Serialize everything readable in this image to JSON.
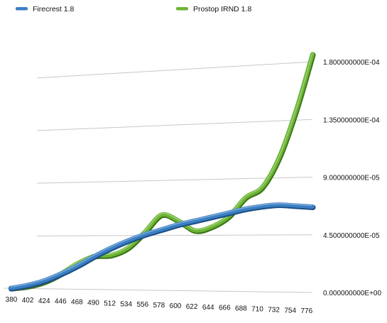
{
  "chart_data": {
    "type": "line",
    "title": "",
    "xlabel": "",
    "ylabel": "",
    "legend_placement": "top",
    "grid": true,
    "x": [
      "380",
      "402",
      "424",
      "446",
      "468",
      "490",
      "512",
      "534",
      "556",
      "578",
      "600",
      "622",
      "644",
      "666",
      "688",
      "710",
      "732",
      "754",
      "776"
    ],
    "yticks": [
      "0.000000000E+00",
      "4.500000000E-05",
      "9.000000000E-05",
      "1.350000000E-04",
      "1.800000000E-04"
    ],
    "ylim": [
      0,
      0.00018
    ],
    "series": [
      {
        "name": "Firecrest 1.8",
        "color": "#3a7fc4",
        "values": [
          2e-07,
          3e-06,
          7e-06,
          1.3e-05,
          2e-05,
          2.8e-05,
          3.5e-05,
          4.1e-05,
          4.6e-05,
          5e-05,
          5.4e-05,
          5.7e-05,
          6e-05,
          6.3e-05,
          6.6e-05,
          6.8e-05,
          6.9e-05,
          6.8e-05,
          6.7e-05
        ]
      },
      {
        "name": "Prostop IRND 1.8",
        "color": "#6cb533",
        "values": [
          2e-07,
          2e-06,
          6e-06,
          1.3e-05,
          2.2e-05,
          2.8e-05,
          2.9e-05,
          3.5e-05,
          4.8e-05,
          6.2e-05,
          5.7e-05,
          4.9e-05,
          5.2e-05,
          6e-05,
          7.5e-05,
          8.3e-05,
          0.000106,
          0.000142,
          0.000186
        ]
      }
    ]
  }
}
